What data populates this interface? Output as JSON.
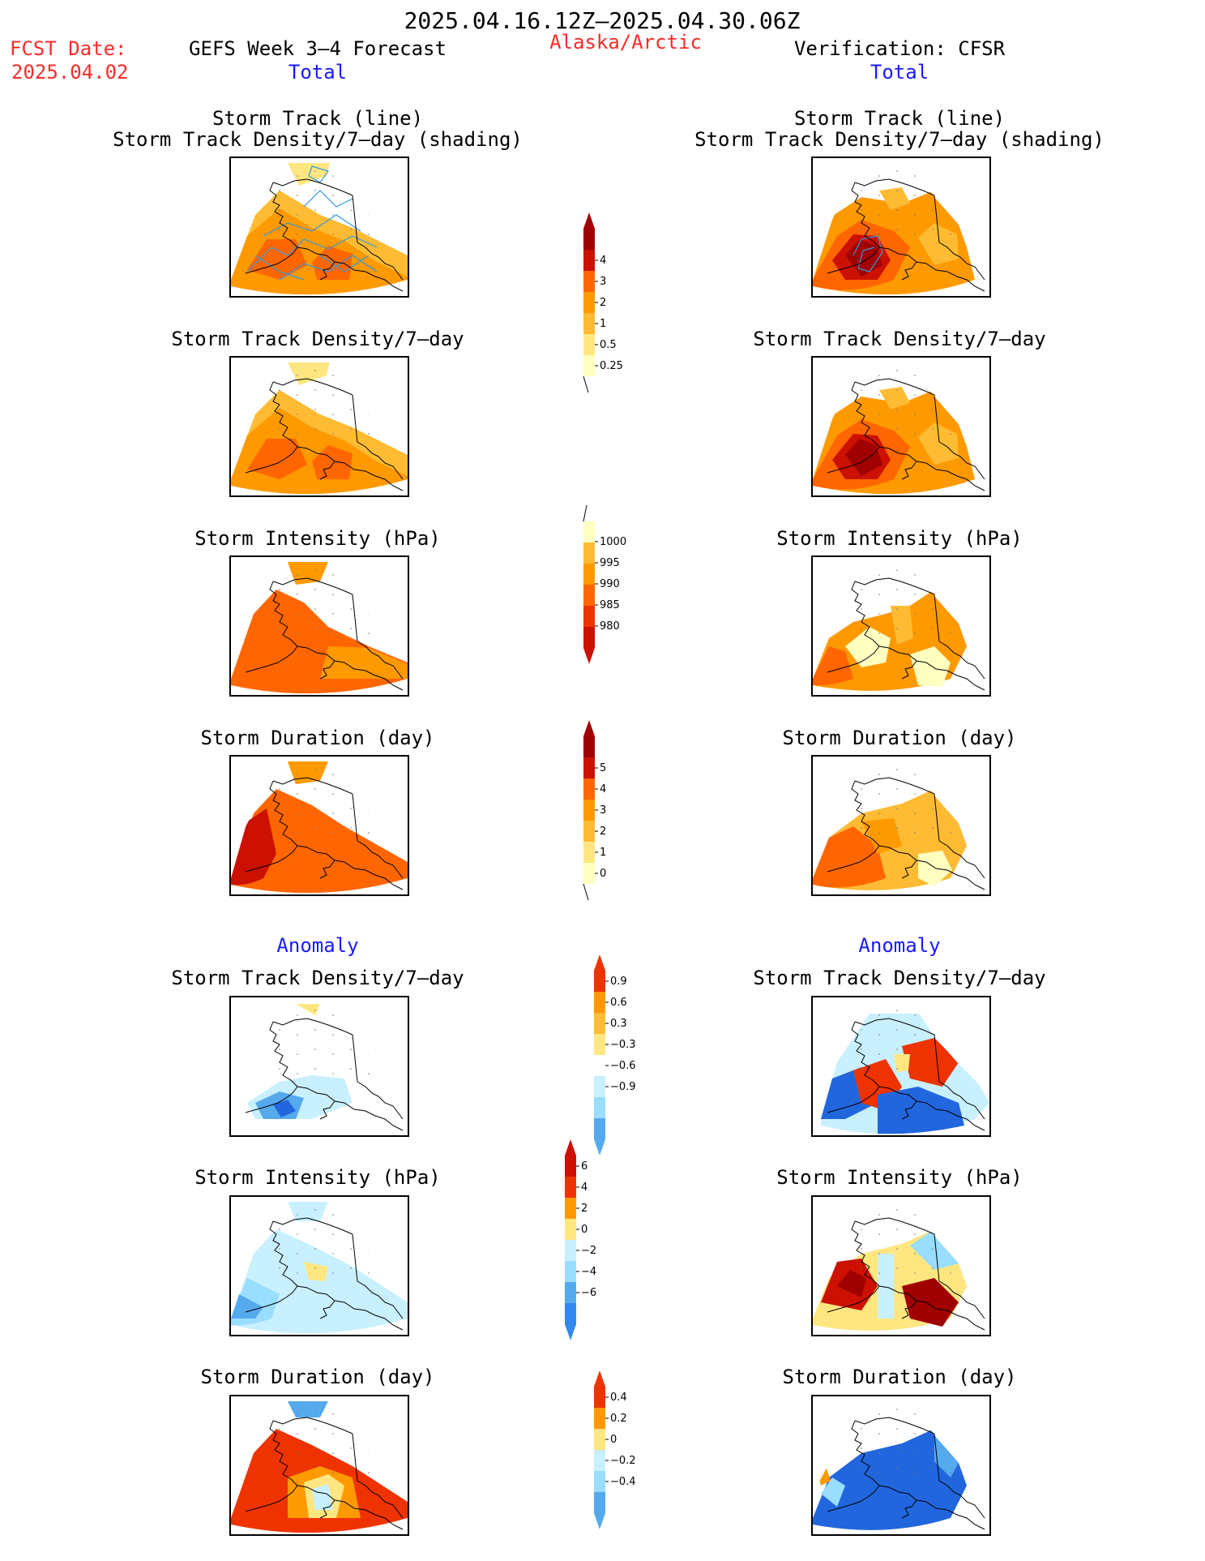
{
  "header": {
    "period": "2025.04.16.12Z–2025.04.30.06Z",
    "fcst_label": "FCST Date:",
    "fcst_date": "2025.04.02",
    "model": "GEFS Week 3–4 Forecast",
    "region": "Alaska/Arctic",
    "verification": "Verification: CFSR"
  },
  "sections": {
    "total": "Total",
    "anomaly": "Anomaly"
  },
  "panel_titles": {
    "track_line": "Storm Track (line)",
    "track_shading": "Storm Track Density/7–day (shading)",
    "density": "Storm Track Density/7–day",
    "intensity": "Storm Intensity (hPa)",
    "duration": "Storm Duration (day)"
  },
  "colorbars": {
    "total_density": [
      "0.25",
      "0.5",
      "1",
      "2",
      "3",
      "4"
    ],
    "total_intensity": [
      "1000",
      "995",
      "990",
      "985",
      "980"
    ],
    "total_duration": [
      "0",
      "1",
      "2",
      "3",
      "4",
      "5"
    ],
    "anom_density": [
      "0.9",
      "0.6",
      "0.3",
      "−0.3",
      "−0.6",
      "−0.9"
    ],
    "anom_intensity": [
      "6",
      "4",
      "2",
      "0",
      "−2",
      "−4",
      "−6"
    ],
    "anom_duration": [
      "0.4",
      "0.2",
      "0",
      "−0.2",
      "−0.4"
    ]
  },
  "colors": {
    "pale_yellow": "#ffffc0",
    "light_yellow": "#ffe680",
    "gold": "#ffbb33",
    "orange": "#ff9900",
    "dark_orange": "#ff6600",
    "red_orange": "#ee3300",
    "red": "#cc1100",
    "dark_red": "#a00000",
    "pale_blue": "#c8f0ff",
    "light_blue": "#99ddff",
    "mid_blue": "#55aaee",
    "blue": "#2266dd"
  }
}
